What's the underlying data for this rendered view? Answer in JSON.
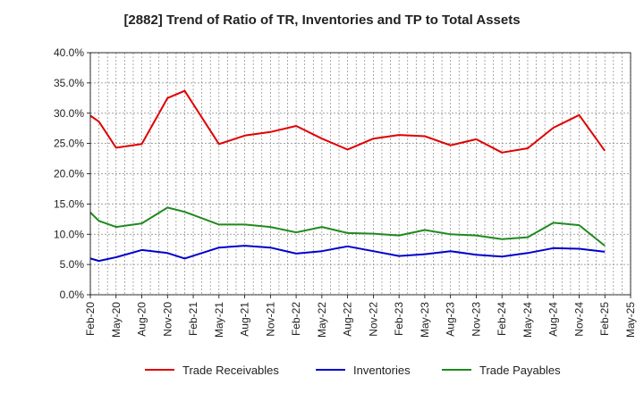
{
  "chart_data": {
    "type": "line",
    "title": "[2882]  Trend of Ratio of TR, Inventories and TP to Total Assets",
    "xlabel": "",
    "ylabel": "",
    "ylim": [
      0,
      40
    ],
    "yticks": [
      "0.0%",
      "5.0%",
      "10.0%",
      "15.0%",
      "20.0%",
      "25.0%",
      "30.0%",
      "35.0%",
      "40.0%"
    ],
    "xticks": [
      "Feb-20",
      "May-20",
      "Aug-20",
      "Nov-20",
      "Feb-21",
      "May-21",
      "Aug-21",
      "Nov-21",
      "Feb-22",
      "May-22",
      "Aug-22",
      "Nov-22",
      "Feb-23",
      "May-23",
      "Aug-23",
      "Nov-23",
      "Feb-24",
      "May-24",
      "Aug-24",
      "Nov-24",
      "Feb-25",
      "May-25"
    ],
    "grid": true,
    "legend_position": "bottom",
    "series": [
      {
        "name": "Trade Receivables",
        "color": "#e00000",
        "points": [
          [
            "Feb-20",
            29.6
          ],
          [
            "Mar-20",
            28.6
          ],
          [
            "May-20",
            24.3
          ],
          [
            "Aug-20",
            24.9
          ],
          [
            "Nov-20",
            32.5
          ],
          [
            "Jan-21",
            33.7
          ],
          [
            "May-21",
            24.9
          ],
          [
            "Aug-21",
            26.3
          ],
          [
            "Nov-21",
            26.9
          ],
          [
            "Feb-22",
            27.9
          ],
          [
            "May-22",
            25.8
          ],
          [
            "Aug-22",
            24.0
          ],
          [
            "Nov-22",
            25.8
          ],
          [
            "Feb-23",
            26.4
          ],
          [
            "May-23",
            26.2
          ],
          [
            "Aug-23",
            24.7
          ],
          [
            "Nov-23",
            25.7
          ],
          [
            "Feb-24",
            23.5
          ],
          [
            "May-24",
            24.2
          ],
          [
            "Aug-24",
            27.6
          ],
          [
            "Nov-24",
            29.7
          ],
          [
            "Feb-25",
            23.8
          ]
        ]
      },
      {
        "name": "Inventories",
        "color": "#0000cc",
        "points": [
          [
            "Feb-20",
            6.0
          ],
          [
            "Mar-20",
            5.6
          ],
          [
            "May-20",
            6.2
          ],
          [
            "Aug-20",
            7.4
          ],
          [
            "Nov-20",
            6.9
          ],
          [
            "Jan-21",
            6.0
          ],
          [
            "May-21",
            7.8
          ],
          [
            "Aug-21",
            8.1
          ],
          [
            "Nov-21",
            7.8
          ],
          [
            "Feb-22",
            6.8
          ],
          [
            "May-22",
            7.2
          ],
          [
            "Aug-22",
            8.0
          ],
          [
            "Nov-22",
            7.2
          ],
          [
            "Feb-23",
            6.4
          ],
          [
            "May-23",
            6.7
          ],
          [
            "Aug-23",
            7.2
          ],
          [
            "Nov-23",
            6.6
          ],
          [
            "Feb-24",
            6.3
          ],
          [
            "May-24",
            6.9
          ],
          [
            "Aug-24",
            7.7
          ],
          [
            "Nov-24",
            7.6
          ],
          [
            "Feb-25",
            7.1
          ]
        ]
      },
      {
        "name": "Trade Payables",
        "color": "#1f8a1f",
        "points": [
          [
            "Feb-20",
            13.6
          ],
          [
            "Mar-20",
            12.2
          ],
          [
            "May-20",
            11.2
          ],
          [
            "Aug-20",
            11.8
          ],
          [
            "Nov-20",
            14.4
          ],
          [
            "Jan-21",
            13.7
          ],
          [
            "May-21",
            11.6
          ],
          [
            "Aug-21",
            11.6
          ],
          [
            "Nov-21",
            11.2
          ],
          [
            "Feb-22",
            10.3
          ],
          [
            "May-22",
            11.2
          ],
          [
            "Aug-22",
            10.2
          ],
          [
            "Nov-22",
            10.1
          ],
          [
            "Feb-23",
            9.8
          ],
          [
            "May-23",
            10.7
          ],
          [
            "Aug-23",
            10.0
          ],
          [
            "Nov-23",
            9.8
          ],
          [
            "Feb-24",
            9.2
          ],
          [
            "May-24",
            9.5
          ],
          [
            "Aug-24",
            11.9
          ],
          [
            "Nov-24",
            11.5
          ],
          [
            "Feb-25",
            8.1
          ]
        ]
      }
    ]
  }
}
